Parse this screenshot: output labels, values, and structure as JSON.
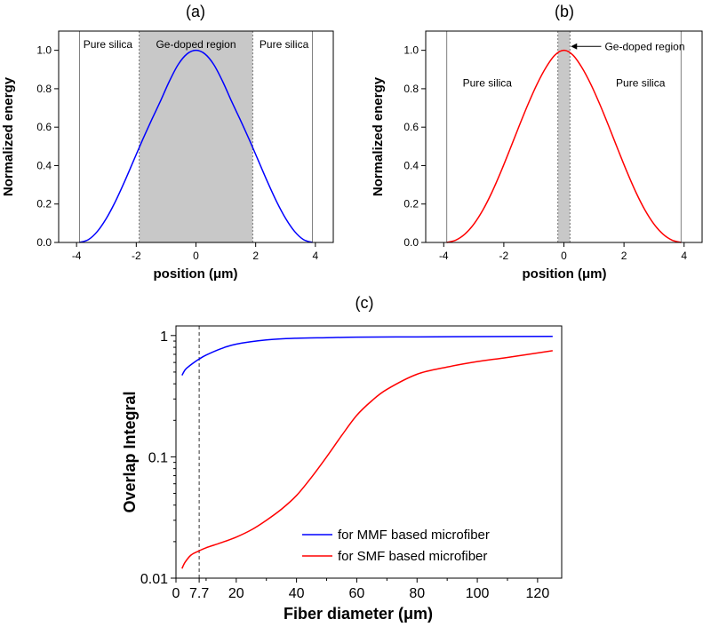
{
  "chart_data": [
    {
      "panel_label": "(a)",
      "type": "line",
      "xlabel": "position (μm)",
      "ylabel": "Normalized energy",
      "xlim": [
        -4.6,
        4.6
      ],
      "ylim": [
        0.0,
        1.1
      ],
      "xticks": [
        -4,
        -2,
        0,
        2,
        4
      ],
      "xtick_labels": [
        "-4",
        "-2",
        "0",
        "2",
        "4"
      ],
      "yticks": [
        0.0,
        0.2,
        0.4,
        0.6,
        0.8,
        1.0
      ],
      "ytick_labels": [
        "0.0",
        "0.2",
        "0.4",
        "0.6",
        "0.8",
        "1.0"
      ],
      "shaded_region": {
        "x0": -1.9,
        "x1": 1.9,
        "color": "#c8c8c8"
      },
      "boundary_lines": [
        -3.9,
        3.9
      ],
      "region_labels": [
        {
          "text": "Pure silica",
          "x": -2.95,
          "y": 1.03
        },
        {
          "text": "Ge-doped region",
          "x": 0.0,
          "y": 1.03
        },
        {
          "text": "Pure silica",
          "x": 2.95,
          "y": 1.03
        }
      ],
      "series": [
        {
          "color": "#0000ff",
          "x": [
            -3.9,
            -3.6,
            -3.3,
            -3.0,
            -2.7,
            -2.4,
            -2.1,
            -1.8,
            -1.5,
            -1.2,
            -0.9,
            -0.6,
            -0.3,
            0.0,
            0.3,
            0.6,
            0.9,
            1.2,
            1.5,
            1.8,
            2.1,
            2.4,
            2.7,
            3.0,
            3.3,
            3.6,
            3.9
          ],
          "y": [
            0.0,
            0.015,
            0.058,
            0.126,
            0.213,
            0.314,
            0.422,
            0.53,
            0.633,
            0.732,
            0.836,
            0.925,
            0.981,
            1.0,
            0.981,
            0.925,
            0.836,
            0.732,
            0.633,
            0.53,
            0.422,
            0.314,
            0.213,
            0.126,
            0.058,
            0.015,
            0.0
          ]
        }
      ]
    },
    {
      "panel_label": "(b)",
      "type": "line",
      "xlabel": "position (μm)",
      "ylabel": "Normalized energy",
      "xlim": [
        -4.6,
        4.6
      ],
      "ylim": [
        0.0,
        1.1
      ],
      "xticks": [
        -4,
        -2,
        0,
        2,
        4
      ],
      "xtick_labels": [
        "-4",
        "-2",
        "0",
        "2",
        "4"
      ],
      "yticks": [
        0.0,
        0.2,
        0.4,
        0.6,
        0.8,
        1.0
      ],
      "ytick_labels": [
        "0.0",
        "0.2",
        "0.4",
        "0.6",
        "0.8",
        "1.0"
      ],
      "shaded_region": {
        "x0": -0.2,
        "x1": 0.2,
        "color": "#c8c8c8"
      },
      "boundary_lines": [
        -3.9,
        3.9
      ],
      "region_labels": [
        {
          "text": "Pure silica",
          "x": -2.55,
          "y": 0.83
        },
        {
          "text": "Pure silica",
          "x": 2.55,
          "y": 0.83
        }
      ],
      "arrow_annotation": {
        "text": "Ge-doped region",
        "x_from": 1.3,
        "x_to": 0.2,
        "y": 1.02
      },
      "series": [
        {
          "color": "#ff0000",
          "x": [
            -3.9,
            -3.6,
            -3.3,
            -3.0,
            -2.7,
            -2.4,
            -2.1,
            -1.8,
            -1.5,
            -1.2,
            -0.9,
            -0.6,
            -0.3,
            0.0,
            0.3,
            0.6,
            0.9,
            1.2,
            1.5,
            1.8,
            2.1,
            2.4,
            2.7,
            3.0,
            3.3,
            3.6,
            3.9
          ],
          "y": [
            0.0,
            0.012,
            0.043,
            0.095,
            0.168,
            0.26,
            0.367,
            0.483,
            0.602,
            0.717,
            0.822,
            0.91,
            0.975,
            1.0,
            0.975,
            0.91,
            0.822,
            0.717,
            0.602,
            0.483,
            0.367,
            0.26,
            0.168,
            0.095,
            0.043,
            0.012,
            0.0
          ]
        }
      ]
    },
    {
      "panel_label": "(c)",
      "type": "line",
      "xlabel": "Fiber diameter (μm)",
      "ylabel": "Overlap Integral",
      "y_scale": "log",
      "xlim": [
        0,
        128
      ],
      "ylim": [
        0.01,
        1.2
      ],
      "xticks": [
        0,
        7.7,
        20,
        40,
        60,
        80,
        100,
        120
      ],
      "xtick_labels": [
        "0",
        "7.7",
        "20",
        "40",
        "60",
        "80",
        "100",
        "120"
      ],
      "yticks": [
        0.01,
        0.1,
        1
      ],
      "ytick_labels": [
        "0.01",
        "0.1",
        "1"
      ],
      "reference_line_x": 7.7,
      "legend_position": "bottom-right",
      "series": [
        {
          "name": "for MMF based microfiber",
          "color": "#0000ff",
          "x": [
            2,
            3,
            4,
            6,
            7.7,
            10,
            15,
            20,
            30,
            40,
            50,
            60,
            80,
            100,
            125
          ],
          "y": [
            0.47,
            0.52,
            0.55,
            0.6,
            0.64,
            0.69,
            0.78,
            0.85,
            0.92,
            0.95,
            0.96,
            0.97,
            0.975,
            0.98,
            0.985
          ]
        },
        {
          "name": "for SMF based microfiber",
          "color": "#ff0000",
          "x": [
            2,
            3,
            5,
            7.7,
            10,
            15,
            20,
            25,
            30,
            35,
            40,
            45,
            50,
            55,
            60,
            65,
            70,
            80,
            90,
            100,
            110,
            125
          ],
          "y": [
            0.012,
            0.0135,
            0.0155,
            0.0168,
            0.0178,
            0.0196,
            0.0218,
            0.025,
            0.03,
            0.037,
            0.048,
            0.068,
            0.1,
            0.15,
            0.22,
            0.29,
            0.36,
            0.48,
            0.55,
            0.61,
            0.66,
            0.75
          ]
        }
      ]
    }
  ]
}
